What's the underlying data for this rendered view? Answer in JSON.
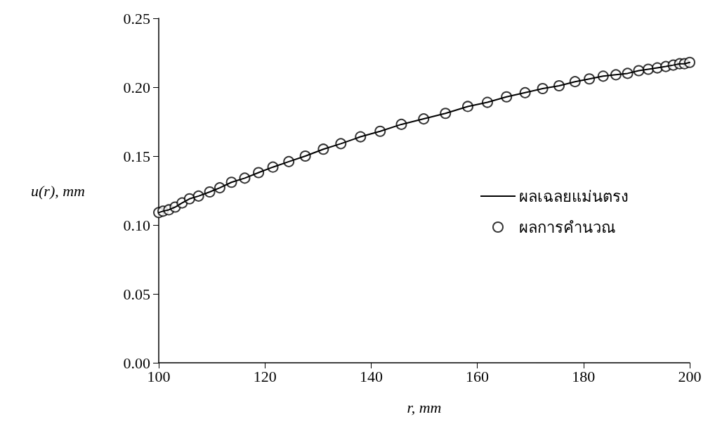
{
  "chart_data": {
    "type": "line",
    "xlabel": "r, mm",
    "ylabel": "u(r), mm",
    "xlim": [
      100,
      200
    ],
    "xticks": [
      100,
      120,
      140,
      160,
      180,
      200
    ],
    "ylim": [
      0,
      0.25
    ],
    "yticks": [
      {
        "value": 0,
        "label": "0.00"
      },
      {
        "value": 0.05,
        "label": "0.05"
      },
      {
        "value": 0.1,
        "label": "0.10"
      },
      {
        "value": 0.15,
        "label": "0.15"
      },
      {
        "value": 0.2,
        "label": "0.20"
      },
      {
        "value": 0.25,
        "label": "0.25"
      }
    ],
    "grid": false,
    "legend": "right",
    "x": [
      100,
      100.8,
      101.9,
      103.1,
      104.4,
      105.8,
      107.5,
      109.6,
      111.5,
      113.7,
      116.2,
      118.8,
      121.5,
      124.5,
      127.6,
      131,
      134.3,
      138,
      141.7,
      145.7,
      149.9,
      154,
      158.2,
      161.9,
      165.5,
      169,
      172.3,
      175.4,
      178.4,
      181.1,
      183.7,
      186.1,
      188.3,
      190.4,
      192.2,
      193.9,
      195.5,
      196.9,
      198.1,
      199,
      200
    ],
    "series": [
      {
        "name": "ผลเฉลยแม่นตรง",
        "color": "#000000",
        "line_style": "solid",
        "marker": "none",
        "values": [
          0.109,
          0.11,
          0.111,
          0.113,
          0.116,
          0.119,
          0.121,
          0.124,
          0.127,
          0.131,
          0.134,
          0.138,
          0.142,
          0.146,
          0.15,
          0.155,
          0.159,
          0.164,
          0.168,
          0.173,
          0.177,
          0.181,
          0.186,
          0.189,
          0.193,
          0.196,
          0.199,
          0.201,
          0.204,
          0.206,
          0.208,
          0.209,
          0.21,
          0.212,
          0.213,
          0.214,
          0.215,
          0.216,
          0.217,
          0.217,
          0.218
        ]
      },
      {
        "name": "ผลการคำนวณ",
        "type": "scatter",
        "color": "#000000",
        "marker": "circle",
        "values": [
          0.109,
          0.11,
          0.111,
          0.113,
          0.116,
          0.119,
          0.121,
          0.124,
          0.127,
          0.131,
          0.134,
          0.138,
          0.142,
          0.146,
          0.15,
          0.155,
          0.159,
          0.164,
          0.168,
          0.173,
          0.177,
          0.181,
          0.186,
          0.189,
          0.193,
          0.196,
          0.199,
          0.201,
          0.204,
          0.206,
          0.208,
          0.209,
          0.21,
          0.212,
          0.213,
          0.214,
          0.215,
          0.216,
          0.217,
          0.217,
          0.218
        ]
      }
    ]
  }
}
